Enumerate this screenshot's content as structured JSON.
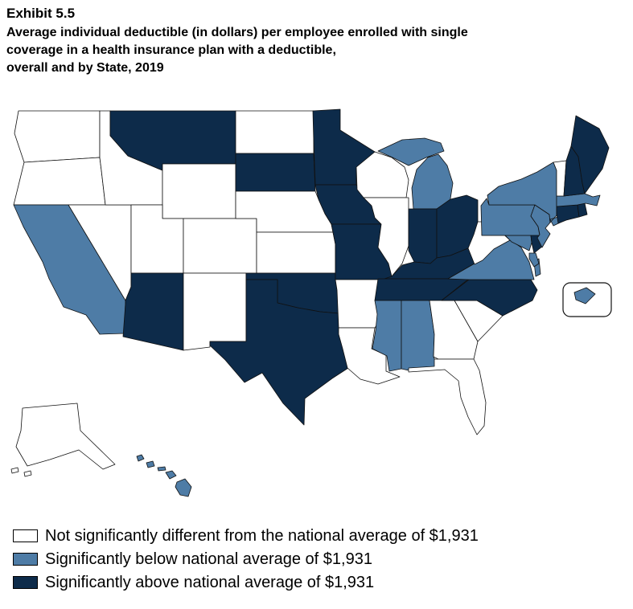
{
  "title": {
    "exhibit": "Exhibit 5.5",
    "lines": [
      "Average individual deductible (in dollars) per employee enrolled with single",
      "coverage in a health insurance plan with a deductible,",
      "overall and by State, 2019"
    ]
  },
  "legend": {
    "items": [
      {
        "id": "not_different",
        "label": "Not significantly different from the national average of $1,931",
        "color": "#FFFFFF"
      },
      {
        "id": "below",
        "label": "Significantly below national average of $1,931",
        "color": "#4E7CA6"
      },
      {
        "id": "above",
        "label": "Significantly above national average of $1,931",
        "color": "#0D2B4A"
      }
    ]
  },
  "chart_data": {
    "type": "heatmap",
    "map_variant": "us-state-choropleth",
    "title": "Average individual deductible (in dollars) per employee enrolled with single coverage in a health insurance plan with a deductible, overall and by State, 2019",
    "national_average": "$1,931",
    "legend_position": "bottom-left",
    "categories": [
      "not_different",
      "below",
      "above"
    ],
    "states": {
      "AL": "below",
      "AK": "not_different",
      "AZ": "above",
      "AR": "not_different",
      "CA": "below",
      "CO": "not_different",
      "CT": "above",
      "DE": "above",
      "DC": "below",
      "FL": "not_different",
      "GA": "not_different",
      "HI": "below",
      "ID": "not_different",
      "IL": "not_different",
      "IN": "above",
      "IA": "above",
      "KS": "not_different",
      "KY": "above",
      "LA": "not_different",
      "ME": "above",
      "MD": "below",
      "MA": "below",
      "MI": "below",
      "MN": "above",
      "MS": "below",
      "MO": "above",
      "MT": "above",
      "NE": "not_different",
      "NV": "not_different",
      "NH": "above",
      "NJ": "below",
      "NM": "not_different",
      "NY": "below",
      "NC": "above",
      "ND": "not_different",
      "OH": "above",
      "OK": "above",
      "OR": "not_different",
      "PA": "below",
      "RI": "above",
      "SC": "not_different",
      "SD": "above",
      "TN": "above",
      "TX": "above",
      "UT": "not_different",
      "VT": "not_different",
      "VA": "below",
      "WA": "not_different",
      "WV": "not_different",
      "WI": "not_different",
      "WY": "not_different"
    }
  }
}
